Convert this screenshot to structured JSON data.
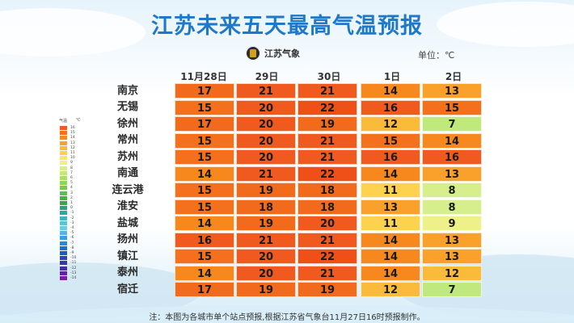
{
  "header": {
    "title": "江苏未来五天最高气温预报",
    "logo_text": "江苏气象",
    "unit": "单位：℃"
  },
  "table": {
    "columns": [
      "11月28日",
      "29日",
      "30日",
      "1日",
      "2日"
    ],
    "rows": [
      {
        "city": "南京",
        "temps": [
          17,
          21,
          21,
          14,
          13
        ]
      },
      {
        "city": "无锡",
        "temps": [
          15,
          20,
          22,
          16,
          15
        ]
      },
      {
        "city": "徐州",
        "temps": [
          17,
          20,
          19,
          12,
          7
        ]
      },
      {
        "city": "常州",
        "temps": [
          15,
          20,
          21,
          15,
          14
        ]
      },
      {
        "city": "苏州",
        "temps": [
          15,
          20,
          21,
          16,
          16
        ]
      },
      {
        "city": "南通",
        "temps": [
          14,
          21,
          22,
          14,
          13
        ]
      },
      {
        "city": "连云港",
        "temps": [
          15,
          19,
          18,
          11,
          8
        ]
      },
      {
        "city": "淮安",
        "temps": [
          15,
          18,
          18,
          13,
          8
        ]
      },
      {
        "city": "盐城",
        "temps": [
          14,
          19,
          20,
          11,
          9
        ]
      },
      {
        "city": "扬州",
        "temps": [
          16,
          21,
          21,
          14,
          13
        ]
      },
      {
        "city": "镇江",
        "temps": [
          15,
          20,
          22,
          14,
          13
        ]
      },
      {
        "city": "泰州",
        "temps": [
          14,
          20,
          21,
          14,
          12
        ]
      },
      {
        "city": "宿迁",
        "temps": [
          17,
          19,
          19,
          12,
          7
        ]
      }
    ]
  },
  "legend": {
    "title": "气温",
    "unit": "℃",
    "entries": [
      {
        "label": "16",
        "color": "#f05a1e"
      },
      {
        "label": "15",
        "color": "#f4701c"
      },
      {
        "label": "14",
        "color": "#f7881d"
      },
      {
        "label": "13",
        "color": "#f9a12a"
      },
      {
        "label": "12",
        "color": "#fbbb3a"
      },
      {
        "label": "11",
        "color": "#fcd24e"
      },
      {
        "label": "10",
        "color": "#fde46a"
      },
      {
        "label": "9",
        "color": "#eef08a"
      },
      {
        "label": "8",
        "color": "#d6ef8c"
      },
      {
        "label": "7",
        "color": "#bfe87d"
      },
      {
        "label": "6",
        "color": "#a6df6c"
      },
      {
        "label": "5",
        "color": "#8dd65c"
      },
      {
        "label": "4",
        "color": "#73cc4e"
      },
      {
        "label": "3",
        "color": "#58c244"
      },
      {
        "label": "2",
        "color": "#3eb640"
      },
      {
        "label": "1",
        "color": "#2daa4c"
      },
      {
        "label": "0",
        "color": "#26a47a"
      },
      {
        "label": "-1",
        "color": "#2aa9a3"
      },
      {
        "label": "-2",
        "color": "#3ab5c6"
      },
      {
        "label": "-3",
        "color": "#5ac2d9"
      },
      {
        "label": "-4",
        "color": "#6fcbe2"
      },
      {
        "label": "-5",
        "color": "#55b5e6"
      },
      {
        "label": "-6",
        "color": "#3d9fe2"
      },
      {
        "label": "-7",
        "color": "#2b87da"
      },
      {
        "label": "-8",
        "color": "#1f6fd0"
      },
      {
        "label": "-9",
        "color": "#1f58c4"
      },
      {
        "label": "-10",
        "color": "#2a44b8"
      },
      {
        "label": "-11",
        "color": "#3a35ad"
      },
      {
        "label": "-12",
        "color": "#4d2aa6"
      },
      {
        "label": "-13",
        "color": "#6322a3"
      },
      {
        "label": "-14",
        "color": "#7a1ea3"
      }
    ]
  },
  "footer": {
    "note": "注：本图为各城市单个站点预报,根据江苏省气象台11月27日16时预报制作。"
  }
}
